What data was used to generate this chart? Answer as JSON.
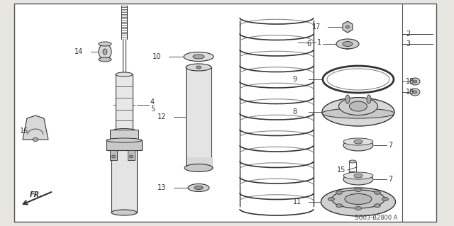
{
  "bg_color": "#e8e6e0",
  "inner_bg": "#ffffff",
  "border_color": "#555555",
  "lc": "#333333",
  "diagram_code": "SG03-B2800 A",
  "figsize": [
    6.4,
    3.19
  ],
  "dpi": 100
}
